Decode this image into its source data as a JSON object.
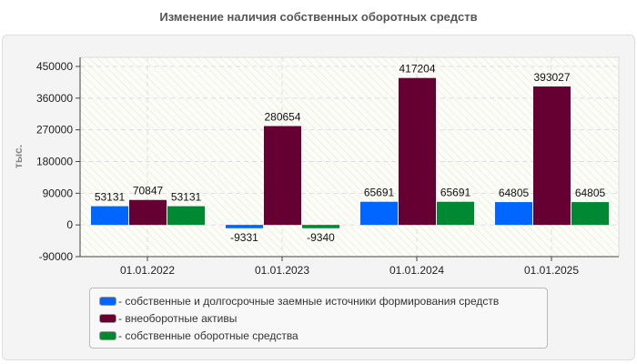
{
  "chart_data": {
    "type": "bar",
    "title": "Изменение наличия собственных оборотных средств",
    "ylabel": "тыс.",
    "xlabel": "",
    "categories": [
      "01.01.2022",
      "01.01.2023",
      "01.01.2024",
      "01.01.2025"
    ],
    "ylim": [
      -90000,
      450000
    ],
    "yticks": [
      -90000,
      0,
      90000,
      180000,
      270000,
      360000,
      450000
    ],
    "grid": true,
    "legend_position": "bottom",
    "series": [
      {
        "name": "- собственные и долгосрочные заемные источники формирования средств",
        "color": "#0066ff",
        "values": [
          53131,
          -9331,
          65691,
          64805
        ]
      },
      {
        "name": "- внеоборотные активы",
        "color": "#660033",
        "values": [
          70847,
          280654,
          417204,
          393027
        ]
      },
      {
        "name": "- собственные оборотные средства",
        "color": "#008833",
        "values": [
          53131,
          -9340,
          65691,
          64805
        ]
      }
    ]
  }
}
